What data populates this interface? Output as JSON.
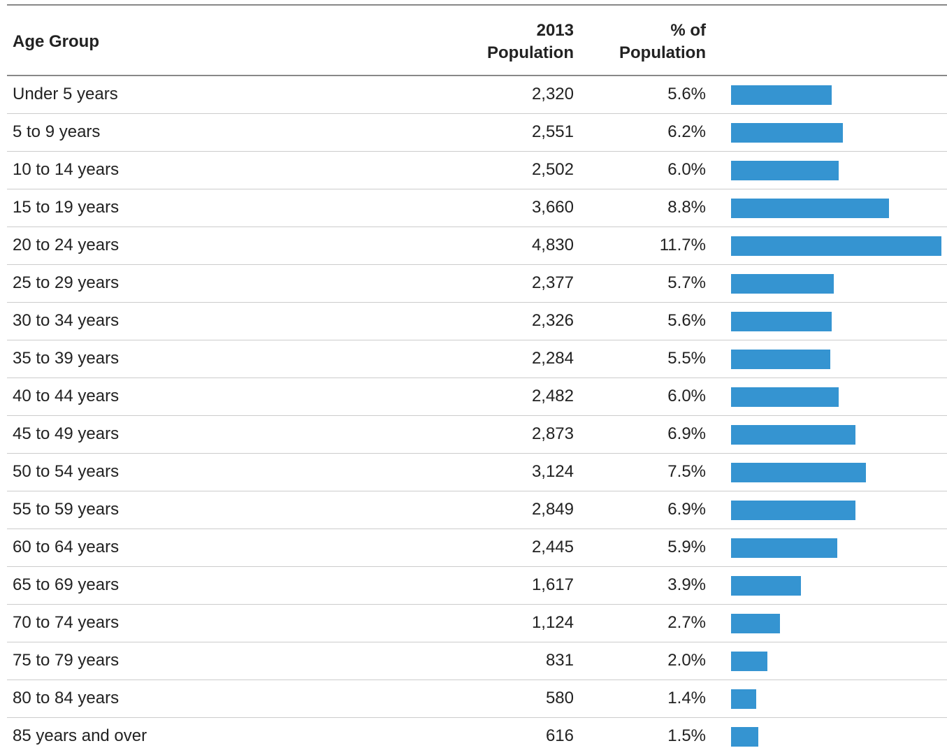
{
  "table": {
    "headers": {
      "age_group": "Age Group",
      "population_line1": "2013",
      "population_line2": "Population",
      "percent_line1": "% of",
      "percent_line2": "Population"
    }
  },
  "chart_data": {
    "type": "table",
    "bar_color": "#3594d1",
    "columns": [
      "Age Group",
      "2013 Population",
      "% of Population"
    ],
    "rows": [
      {
        "age_group": "Under 5 years",
        "population": "2,320",
        "percent": "5.6%",
        "value": 5.6
      },
      {
        "age_group": "5 to 9 years",
        "population": "2,551",
        "percent": "6.2%",
        "value": 6.2
      },
      {
        "age_group": "10 to 14 years",
        "population": "2,502",
        "percent": "6.0%",
        "value": 6.0
      },
      {
        "age_group": "15 to 19 years",
        "population": "3,660",
        "percent": "8.8%",
        "value": 8.8
      },
      {
        "age_group": "20 to 24 years",
        "population": "4,830",
        "percent": "11.7%",
        "value": 11.7
      },
      {
        "age_group": "25 to 29 years",
        "population": "2,377",
        "percent": "5.7%",
        "value": 5.7
      },
      {
        "age_group": "30 to 34 years",
        "population": "2,326",
        "percent": "5.6%",
        "value": 5.6
      },
      {
        "age_group": "35 to 39 years",
        "population": "2,284",
        "percent": "5.5%",
        "value": 5.5
      },
      {
        "age_group": "40 to 44 years",
        "population": "2,482",
        "percent": "6.0%",
        "value": 6.0
      },
      {
        "age_group": "45 to 49 years",
        "population": "2,873",
        "percent": "6.9%",
        "value": 6.9
      },
      {
        "age_group": "50 to 54 years",
        "population": "3,124",
        "percent": "7.5%",
        "value": 7.5
      },
      {
        "age_group": "55 to 59 years",
        "population": "2,849",
        "percent": "6.9%",
        "value": 6.9
      },
      {
        "age_group": "60 to 64 years",
        "population": "2,445",
        "percent": "5.9%",
        "value": 5.9
      },
      {
        "age_group": "65 to 69 years",
        "population": "1,617",
        "percent": "3.9%",
        "value": 3.9
      },
      {
        "age_group": "70 to 74 years",
        "population": "1,124",
        "percent": "2.7%",
        "value": 2.7
      },
      {
        "age_group": "75 to 79 years",
        "population": "831",
        "percent": "2.0%",
        "value": 2.0
      },
      {
        "age_group": "80 to 84 years",
        "population": "580",
        "percent": "1.4%",
        "value": 1.4
      },
      {
        "age_group": "85 years and over",
        "population": "616",
        "percent": "1.5%",
        "value": 1.5
      }
    ]
  }
}
